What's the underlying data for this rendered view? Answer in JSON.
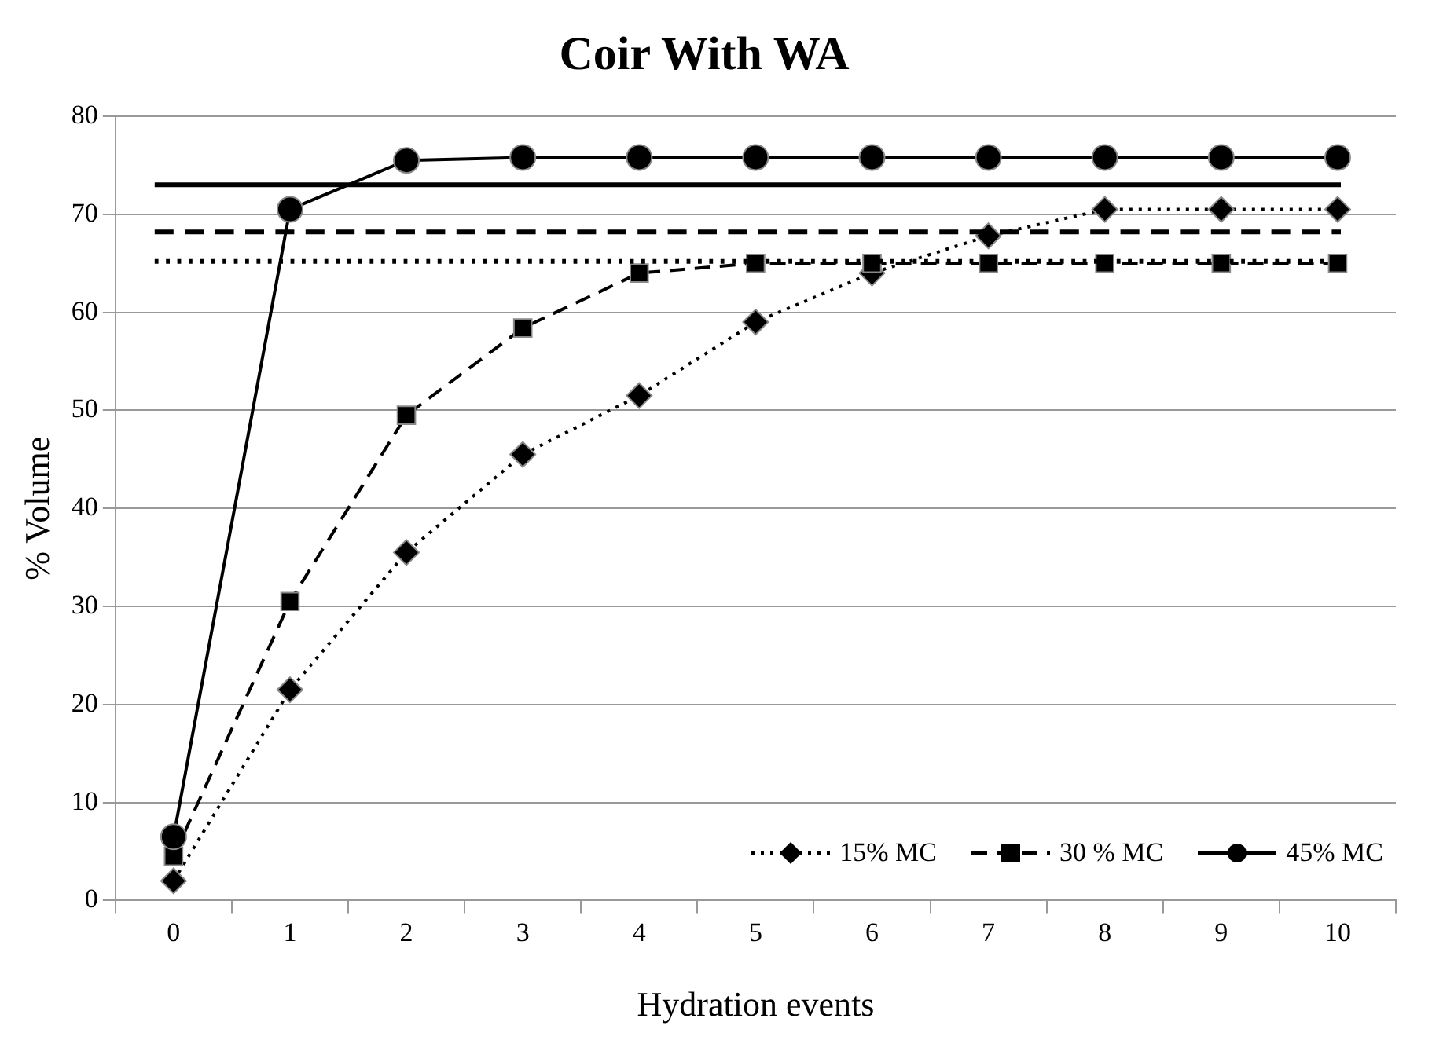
{
  "chart_data": {
    "type": "line",
    "title": "Coir With WA",
    "xlabel": "Hydration events",
    "ylabel": "% Volume",
    "categories": [
      "0",
      "1",
      "2",
      "3",
      "4",
      "5",
      "6",
      "7",
      "8",
      "9",
      "10"
    ],
    "series": [
      {
        "name": "15% MC",
        "color": "#000000",
        "marker": "diamond",
        "line_style": "dotted",
        "values": [
          2,
          21.5,
          35.5,
          45.5,
          51.5,
          59,
          64,
          67.8,
          70.5,
          70.5,
          70.5
        ]
      },
      {
        "name": "30 % MC",
        "color": "#000000",
        "marker": "square",
        "line_style": "dashed",
        "values": [
          4.5,
          30.5,
          49.5,
          58.4,
          64,
          65,
          65,
          65,
          65,
          65,
          65
        ]
      },
      {
        "name": "45% MC",
        "color": "#000000",
        "marker": "circle",
        "line_style": "solid",
        "values": [
          6.5,
          70.5,
          75.5,
          75.8,
          75.8,
          75.8,
          75.8,
          75.8,
          75.8,
          75.8,
          75.8
        ]
      }
    ],
    "ref_lines": [
      {
        "axis": "y",
        "value": 73,
        "color": "#000000",
        "line_style": "solid"
      },
      {
        "axis": "y",
        "value": 68.2,
        "color": "#000000",
        "line_style": "dashed"
      },
      {
        "axis": "y",
        "value": 65.2,
        "color": "#000000",
        "line_style": "dotted"
      }
    ],
    "ylim": [
      0,
      80
    ],
    "yticks": [
      0,
      10,
      20,
      30,
      40,
      50,
      60,
      70,
      80
    ],
    "grid": "y",
    "legend": "bottom right"
  }
}
